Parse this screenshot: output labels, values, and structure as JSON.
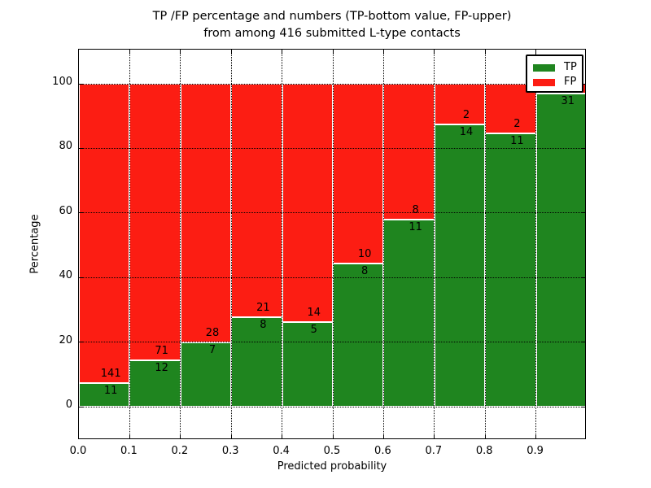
{
  "figure": {
    "title_line1": "TP /FP percentage and numbers (TP-bottom value, FP-upper)",
    "title_line2": "from among 416 submitted L-type contacts",
    "background": "#ffffff"
  },
  "chart_data": {
    "type": "bar",
    "subtype": "stacked-percentage",
    "title": "TP /FP percentage and numbers (TP-bottom value, FP-upper)\nfrom among 416 submitted L-type contacts",
    "xlabel": "Predicted probability",
    "ylabel": "Percentage",
    "xlim": [
      0.0,
      1.0
    ],
    "ylim": [
      -10.3,
      110.6
    ],
    "bin_width": 0.1,
    "total_contacts": 416,
    "x_ticks": [
      {
        "label": "0.0",
        "value": 0.0
      },
      {
        "label": "0.1",
        "value": 0.1
      },
      {
        "label": "0.2",
        "value": 0.2
      },
      {
        "label": "0.3",
        "value": 0.3
      },
      {
        "label": "0.4",
        "value": 0.4
      },
      {
        "label": "0.5",
        "value": 0.5
      },
      {
        "label": "0.6",
        "value": 0.6
      },
      {
        "label": "0.7",
        "value": 0.7
      },
      {
        "label": "0.8",
        "value": 0.8
      },
      {
        "label": "0.9",
        "value": 0.9
      }
    ],
    "y_ticks": [
      {
        "label": "0",
        "value": 0
      },
      {
        "label": "20",
        "value": 20
      },
      {
        "label": "40",
        "value": 40
      },
      {
        "label": "60",
        "value": 60
      },
      {
        "label": "80",
        "value": 80
      },
      {
        "label": "100",
        "value": 100
      }
    ],
    "grid": {
      "style": "dotted",
      "color": "#000000",
      "drawn_over_bars": true
    },
    "bins": [
      {
        "range": [
          0.0,
          0.1
        ],
        "tp": 11,
        "fp": 141
      },
      {
        "range": [
          0.1,
          0.2
        ],
        "tp": 12,
        "fp": 71
      },
      {
        "range": [
          0.2,
          0.3
        ],
        "tp": 7,
        "fp": 28
      },
      {
        "range": [
          0.3,
          0.4
        ],
        "tp": 8,
        "fp": 21
      },
      {
        "range": [
          0.4,
          0.5
        ],
        "tp": 5,
        "fp": 14
      },
      {
        "range": [
          0.5,
          0.6
        ],
        "tp": 8,
        "fp": 10
      },
      {
        "range": [
          0.6,
          0.7
        ],
        "tp": 11,
        "fp": 8
      },
      {
        "range": [
          0.7,
          0.8
        ],
        "tp": 14,
        "fp": 2
      },
      {
        "range": [
          0.8,
          0.9
        ],
        "tp": 11,
        "fp": 2
      },
      {
        "range": [
          0.9,
          1.0
        ],
        "tp": 31,
        "fp": 1,
        "fp_label_covered_by_legend": true
      }
    ],
    "series": [
      {
        "name": "TP",
        "stack_position": "bottom",
        "color": "#1f851f",
        "values": [
          11,
          12,
          7,
          8,
          5,
          8,
          11,
          14,
          11,
          31
        ]
      },
      {
        "name": "FP",
        "stack_position": "top",
        "color": "#fc1d13",
        "values": [
          141,
          71,
          28,
          21,
          14,
          10,
          8,
          2,
          2,
          1
        ]
      }
    ],
    "bar_edge_color": "#ffffff",
    "legend": {
      "location": "upper right",
      "entries": [
        {
          "label": "TP",
          "color": "#1f851f"
        },
        {
          "label": "FP",
          "color": "#fc1d13"
        }
      ]
    }
  }
}
